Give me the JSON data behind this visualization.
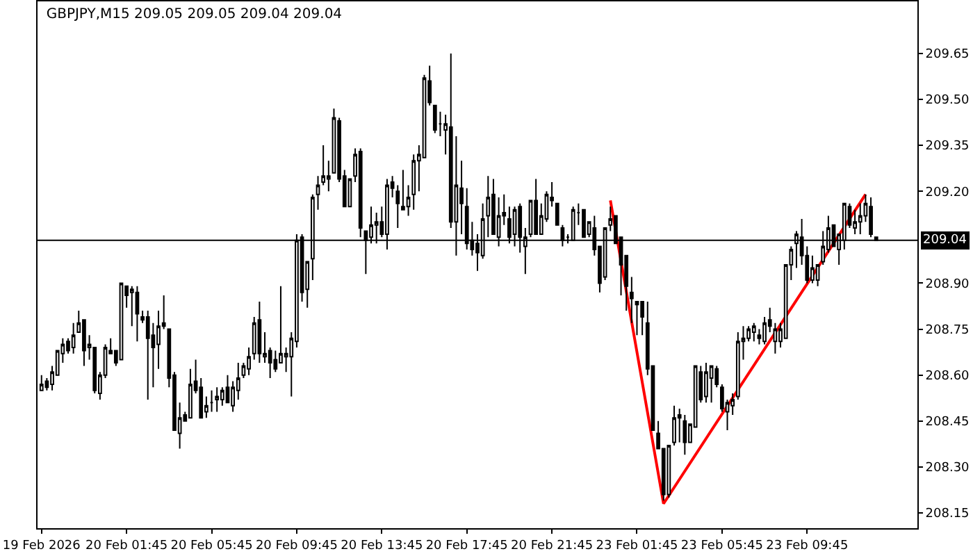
{
  "chart_data": {
    "type": "candlestick",
    "title": "GBPJPY,M15 209.05 209.05 209.04 209.04",
    "categories": [
      "19 Feb 2026",
      null,
      null,
      null,
      null,
      null,
      null,
      null,
      null,
      null,
      null,
      null,
      null,
      null,
      null,
      null,
      "20 Feb 01:45",
      null,
      null,
      null,
      null,
      null,
      null,
      null,
      null,
      null,
      null,
      null,
      null,
      null,
      null,
      null,
      "20 Feb 05:45",
      null,
      null,
      null,
      null,
      null,
      null,
      null,
      null,
      null,
      null,
      null,
      null,
      null,
      null,
      null,
      "20 Feb 09:45",
      null,
      null,
      null,
      null,
      null,
      null,
      null,
      null,
      null,
      null,
      null,
      null,
      null,
      null,
      null,
      "20 Feb 13:45",
      null,
      null,
      null,
      null,
      null,
      null,
      null,
      null,
      null,
      null,
      null,
      null,
      null,
      null,
      null,
      "20 Feb 17:45",
      null,
      null,
      null,
      null,
      null,
      null,
      null,
      null,
      null,
      null,
      null,
      null,
      null,
      null,
      null,
      "20 Feb 21:45",
      null,
      null,
      null,
      null,
      null,
      null,
      null,
      null,
      null,
      null,
      null,
      null,
      null,
      null,
      null,
      "23 Feb 01:45",
      null,
      null,
      null,
      null,
      null,
      null,
      null,
      null,
      null,
      null,
      null,
      null,
      null,
      null,
      null,
      "23 Feb 05:45",
      null,
      null,
      null,
      null,
      null,
      null,
      null,
      null,
      null,
      null,
      null,
      null,
      null,
      null,
      null,
      "23 Feb 09:45",
      null,
      null,
      null,
      null,
      null,
      null,
      null,
      null,
      null,
      null,
      null,
      null,
      null
    ],
    "ohlc": [
      [
        208.55,
        208.6,
        208.55,
        208.57
      ],
      [
        208.58,
        208.59,
        208.55,
        208.56
      ],
      [
        208.57,
        208.63,
        208.55,
        208.61
      ],
      [
        208.6,
        208.68,
        208.6,
        208.68
      ],
      [
        208.67,
        208.72,
        208.64,
        208.7
      ],
      [
        208.71,
        208.72,
        208.67,
        208.68
      ],
      [
        208.69,
        208.77,
        208.67,
        208.73
      ],
      [
        208.74,
        208.81,
        208.74,
        208.77
      ],
      [
        208.78,
        208.78,
        208.63,
        208.68
      ],
      [
        208.69,
        208.73,
        208.65,
        208.7
      ],
      [
        208.69,
        208.69,
        208.54,
        208.55
      ],
      [
        208.54,
        208.61,
        208.52,
        208.6
      ],
      [
        208.6,
        208.7,
        208.59,
        208.69
      ],
      [
        208.68,
        208.72,
        208.67,
        208.67
      ],
      [
        208.68,
        208.68,
        208.63,
        208.64
      ],
      [
        208.65,
        208.9,
        208.65,
        208.9
      ],
      [
        208.89,
        208.89,
        208.82,
        208.86
      ],
      [
        208.87,
        208.89,
        208.76,
        208.88
      ],
      [
        208.87,
        208.89,
        208.71,
        208.8
      ],
      [
        208.79,
        208.81,
        208.77,
        208.78
      ],
      [
        208.79,
        208.81,
        208.52,
        208.72
      ],
      [
        208.73,
        208.77,
        208.56,
        208.69
      ],
      [
        208.7,
        208.81,
        208.62,
        208.76
      ],
      [
        208.77,
        208.86,
        208.75,
        208.76
      ],
      [
        208.75,
        208.75,
        208.56,
        208.59
      ],
      [
        208.6,
        208.61,
        208.42,
        208.42
      ],
      [
        208.41,
        208.51,
        208.36,
        208.46
      ],
      [
        208.47,
        208.48,
        208.45,
        208.45
      ],
      [
        208.46,
        208.62,
        208.46,
        208.57
      ],
      [
        208.58,
        208.65,
        208.54,
        208.55
      ],
      [
        208.56,
        208.59,
        208.46,
        208.46
      ],
      [
        208.48,
        208.53,
        208.46,
        208.5
      ],
      [
        208.51,
        208.55,
        208.48,
        208.51
      ],
      [
        208.52,
        208.56,
        208.48,
        208.53
      ],
      [
        208.52,
        208.56,
        208.5,
        208.55
      ],
      [
        208.56,
        208.6,
        208.51,
        208.51
      ],
      [
        208.5,
        208.58,
        208.48,
        208.56
      ],
      [
        208.55,
        208.64,
        208.52,
        208.59
      ],
      [
        208.6,
        208.64,
        208.59,
        208.63
      ],
      [
        208.62,
        208.69,
        208.6,
        208.66
      ],
      [
        208.67,
        208.79,
        208.65,
        208.77
      ],
      [
        208.78,
        208.84,
        208.64,
        208.67
      ],
      [
        208.66,
        208.74,
        208.64,
        208.67
      ],
      [
        208.68,
        208.69,
        208.59,
        208.64
      ],
      [
        208.65,
        208.68,
        208.61,
        208.62
      ],
      [
        208.64,
        208.89,
        208.64,
        208.67
      ],
      [
        208.66,
        208.69,
        208.61,
        208.67
      ],
      [
        208.66,
        208.74,
        208.53,
        208.72
      ],
      [
        208.71,
        209.06,
        208.69,
        209.04
      ],
      [
        209.05,
        209.06,
        208.84,
        208.87
      ],
      [
        208.88,
        208.97,
        208.82,
        208.97
      ],
      [
        208.98,
        209.19,
        208.91,
        209.18
      ],
      [
        209.19,
        209.25,
        209.14,
        209.22
      ],
      [
        209.23,
        209.35,
        209.22,
        209.25
      ],
      [
        209.24,
        209.3,
        209.2,
        209.25
      ],
      [
        209.26,
        209.47,
        209.26,
        209.44
      ],
      [
        209.43,
        209.44,
        209.23,
        209.24
      ],
      [
        209.25,
        209.27,
        209.15,
        209.15
      ],
      [
        209.15,
        209.24,
        209.15,
        209.24
      ],
      [
        209.25,
        209.34,
        209.23,
        209.32
      ],
      [
        209.33,
        209.34,
        209.05,
        209.08
      ],
      [
        209.07,
        209.07,
        208.93,
        209.04
      ],
      [
        209.05,
        209.15,
        209.03,
        209.09
      ],
      [
        209.09,
        209.13,
        209.03,
        209.1
      ],
      [
        209.1,
        209.15,
        209.05,
        209.06
      ],
      [
        209.06,
        209.24,
        209.01,
        209.22
      ],
      [
        209.23,
        209.25,
        209.18,
        209.21
      ],
      [
        209.2,
        209.22,
        209.08,
        209.16
      ],
      [
        209.15,
        209.27,
        209.14,
        209.14
      ],
      [
        209.15,
        209.22,
        209.12,
        209.18
      ],
      [
        209.19,
        209.32,
        209.14,
        209.3
      ],
      [
        209.3,
        209.35,
        209.2,
        209.32
      ],
      [
        209.31,
        209.58,
        209.31,
        209.57
      ],
      [
        209.56,
        209.61,
        209.48,
        209.49
      ],
      [
        209.48,
        209.48,
        209.39,
        209.4
      ],
      [
        209.42,
        209.46,
        209.38,
        209.42
      ],
      [
        209.4,
        209.45,
        209.32,
        209.42
      ],
      [
        209.41,
        209.65,
        209.08,
        209.1
      ],
      [
        209.1,
        209.38,
        208.99,
        209.22
      ],
      [
        209.21,
        209.3,
        209.06,
        209.16
      ],
      [
        209.15,
        209.21,
        209.01,
        209.03
      ],
      [
        209.04,
        209.1,
        208.99,
        209.01
      ],
      [
        209.03,
        209.06,
        208.94,
        209.0
      ],
      [
        208.99,
        209.16,
        208.98,
        209.11
      ],
      [
        209.12,
        209.25,
        209.05,
        209.18
      ],
      [
        209.19,
        209.24,
        209.06,
        209.06
      ],
      [
        209.05,
        209.18,
        209.02,
        209.12
      ],
      [
        209.13,
        209.19,
        209.09,
        209.12
      ],
      [
        209.11,
        209.15,
        209.03,
        209.05
      ],
      [
        209.06,
        209.15,
        209.02,
        209.14
      ],
      [
        209.15,
        209.16,
        209.0,
        209.05
      ],
      [
        209.02,
        209.08,
        208.93,
        209.05
      ],
      [
        209.06,
        209.17,
        209.05,
        209.17
      ],
      [
        209.17,
        209.24,
        209.06,
        209.06
      ],
      [
        209.06,
        209.16,
        209.06,
        209.12
      ],
      [
        209.11,
        209.2,
        209.1,
        209.19
      ],
      [
        209.18,
        209.23,
        209.15,
        209.17
      ],
      [
        209.16,
        209.16,
        209.09,
        209.09
      ],
      [
        209.08,
        209.09,
        209.02,
        209.04
      ],
      [
        209.05,
        209.06,
        209.03,
        209.05
      ],
      [
        209.04,
        209.15,
        209.04,
        209.14
      ],
      [
        209.13,
        209.16,
        209.09,
        209.13
      ],
      [
        209.14,
        209.14,
        209.05,
        209.05
      ],
      [
        209.06,
        209.1,
        209.05,
        209.1
      ],
      [
        209.08,
        209.12,
        208.99,
        209.01
      ],
      [
        209.02,
        209.02,
        208.87,
        208.9
      ],
      [
        208.92,
        209.08,
        208.91,
        209.08
      ],
      [
        209.09,
        209.15,
        209.07,
        209.11
      ],
      [
        209.12,
        209.12,
        209.03,
        209.03
      ],
      [
        209.05,
        209.05,
        208.86,
        208.96
      ],
      [
        208.99,
        208.99,
        208.81,
        208.89
      ],
      [
        208.87,
        208.92,
        208.77,
        208.85
      ],
      [
        208.84,
        208.84,
        208.73,
        208.83
      ],
      [
        208.84,
        208.84,
        208.73,
        208.79
      ],
      [
        208.77,
        208.84,
        208.6,
        208.62
      ],
      [
        208.63,
        208.63,
        208.42,
        208.42
      ],
      [
        208.41,
        208.45,
        208.36,
        208.36
      ],
      [
        208.36,
        208.36,
        208.19,
        208.21
      ],
      [
        208.21,
        208.37,
        208.2,
        208.37
      ],
      [
        208.38,
        208.5,
        208.37,
        208.46
      ],
      [
        208.47,
        208.49,
        208.38,
        208.46
      ],
      [
        208.45,
        208.47,
        208.34,
        208.38
      ],
      [
        208.38,
        208.44,
        208.38,
        208.44
      ],
      [
        208.43,
        208.63,
        208.43,
        208.63
      ],
      [
        208.61,
        208.63,
        208.51,
        208.52
      ],
      [
        208.53,
        208.64,
        208.51,
        208.61
      ],
      [
        208.59,
        208.63,
        208.51,
        208.63
      ],
      [
        208.62,
        208.63,
        208.56,
        208.57
      ],
      [
        208.56,
        208.57,
        208.48,
        208.49
      ],
      [
        208.48,
        208.52,
        208.42,
        208.51
      ],
      [
        208.5,
        208.54,
        208.47,
        208.52
      ],
      [
        208.53,
        208.74,
        208.52,
        208.71
      ],
      [
        208.71,
        208.76,
        208.65,
        208.72
      ],
      [
        208.72,
        208.76,
        208.71,
        208.75
      ],
      [
        208.74,
        208.77,
        208.71,
        208.76
      ],
      [
        208.73,
        208.75,
        208.7,
        208.72
      ],
      [
        208.71,
        208.79,
        208.7,
        208.77
      ],
      [
        208.78,
        208.82,
        208.74,
        208.76
      ],
      [
        208.71,
        208.77,
        208.67,
        208.75
      ],
      [
        208.71,
        208.77,
        208.69,
        208.75
      ],
      [
        208.72,
        208.96,
        208.72,
        208.96
      ],
      [
        208.96,
        209.02,
        208.91,
        209.01
      ],
      [
        209.03,
        209.07,
        208.95,
        209.06
      ],
      [
        209.05,
        209.11,
        208.96,
        208.99
      ],
      [
        208.99,
        209.02,
        208.9,
        208.91
      ],
      [
        208.91,
        208.99,
        208.9,
        208.95
      ],
      [
        208.91,
        208.96,
        208.89,
        208.96
      ],
      [
        208.97,
        209.07,
        208.96,
        209.02
      ],
      [
        209.01,
        209.12,
        209.0,
        209.08
      ],
      [
        209.09,
        209.09,
        209.02,
        209.02
      ],
      [
        209.01,
        209.06,
        208.96,
        209.06
      ],
      [
        209.04,
        209.16,
        209.01,
        209.16
      ],
      [
        209.15,
        209.16,
        209.08,
        209.09
      ],
      [
        209.08,
        209.14,
        209.06,
        209.1
      ],
      [
        209.1,
        209.16,
        209.06,
        209.12
      ],
      [
        209.12,
        209.19,
        209.1,
        209.16
      ],
      [
        209.15,
        209.18,
        209.05,
        209.06
      ],
      [
        209.05,
        209.05,
        209.04,
        209.04
      ]
    ],
    "series": [
      {
        "type": "line",
        "color": "#ff0000",
        "values": [
          null,
          null,
          null,
          null,
          null,
          null,
          null,
          null,
          null,
          null,
          null,
          null,
          null,
          null,
          null,
          null,
          null,
          null,
          null,
          null,
          null,
          null,
          null,
          null,
          null,
          null,
          null,
          null,
          null,
          null,
          null,
          null,
          null,
          null,
          null,
          null,
          null,
          null,
          null,
          null,
          null,
          null,
          null,
          null,
          null,
          null,
          null,
          null,
          null,
          null,
          null,
          null,
          null,
          null,
          null,
          null,
          null,
          null,
          null,
          null,
          null,
          null,
          null,
          null,
          null,
          null,
          null,
          null,
          null,
          null,
          null,
          null,
          null,
          null,
          null,
          null,
          null,
          null,
          null,
          null,
          null,
          null,
          null,
          null,
          null,
          null,
          null,
          null,
          null,
          null,
          null,
          null,
          null,
          null,
          null,
          null,
          null,
          null,
          null,
          null,
          null,
          null,
          null,
          null,
          null,
          null,
          null,
          209.17,
          null,
          null,
          null,
          null,
          null,
          null,
          null,
          null,
          null,
          208.18,
          null,
          null,
          null,
          null,
          null,
          null,
          null,
          null,
          null,
          null,
          null,
          null,
          null,
          null,
          null,
          null,
          null,
          null,
          null,
          null,
          null,
          null,
          null,
          null,
          null,
          null,
          null,
          null,
          null,
          null,
          null,
          null,
          null,
          null,
          null,
          null,
          null,
          209.19,
          null,
          null
        ]
      }
    ],
    "ylim": [
      208.1,
      209.82
    ],
    "yticks": [
      208.15,
      {
        "value": 208.3,
        "label": "208.30"
      },
      208.45,
      {
        "value": 208.6,
        "label": "208.60"
      },
      208.75,
      {
        "value": 208.9,
        "label": "208.90"
      },
      {
        "value": 209.2,
        "label": "209.20"
      },
      209.35,
      {
        "value": 209.5,
        "label": "209.50"
      },
      209.65
    ],
    "ref_lines": [
      {
        "axis": "y",
        "value": 209.04,
        "label": "209.04",
        "color": "#000000"
      }
    ]
  }
}
